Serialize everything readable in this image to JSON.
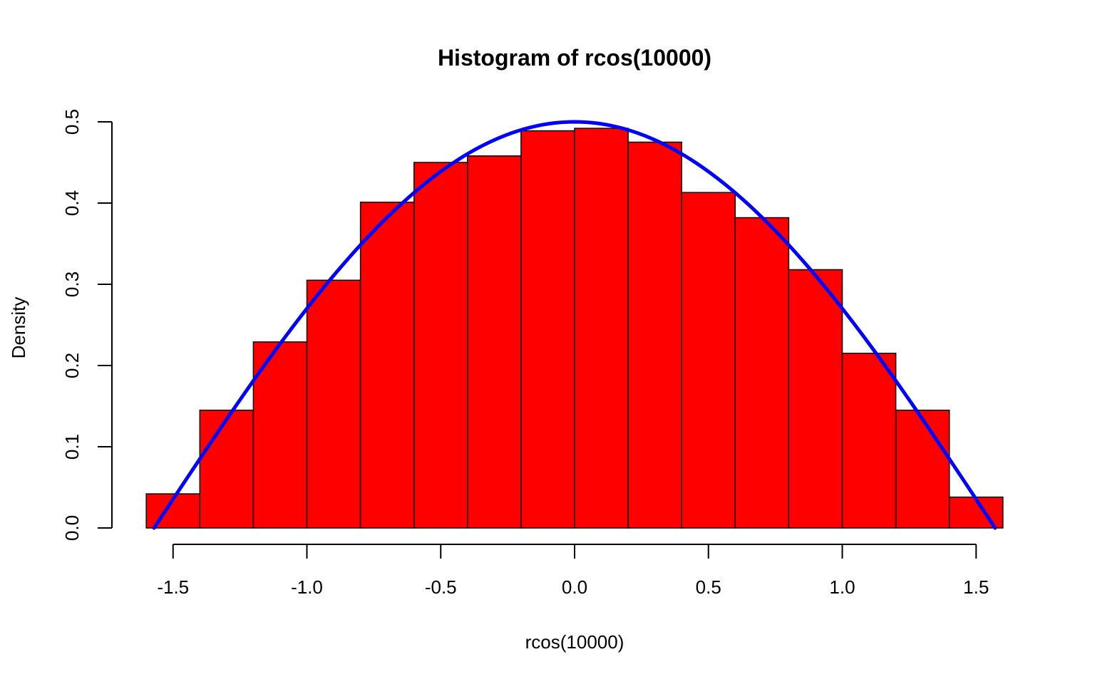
{
  "chart_data": {
    "type": "bar",
    "title": "Histogram of rcos(10000)",
    "xlabel": "rcos(10000)",
    "ylabel": "Density",
    "xlim": [
      -1.6,
      1.6
    ],
    "ylim": [
      0,
      0.5
    ],
    "x_ticks": [
      -1.5,
      -1.0,
      -0.5,
      0.0,
      0.5,
      1.0,
      1.5
    ],
    "x_tick_labels": [
      "-1.5",
      "-1.0",
      "-0.5",
      "0.0",
      "0.5",
      "1.0",
      "1.5"
    ],
    "y_ticks": [
      0.0,
      0.1,
      0.2,
      0.3,
      0.4,
      0.5
    ],
    "y_tick_labels": [
      "0.0",
      "0.1",
      "0.2",
      "0.3",
      "0.4",
      "0.5"
    ],
    "bin_edges": [
      -1.6,
      -1.4,
      -1.2,
      -1.0,
      -0.8,
      -0.6,
      -0.4,
      -0.2,
      0.0,
      0.2,
      0.4,
      0.6,
      0.8,
      1.0,
      1.2,
      1.4,
      1.6
    ],
    "values": [
      0.042,
      0.145,
      0.229,
      0.305,
      0.401,
      0.45,
      0.458,
      0.489,
      0.492,
      0.475,
      0.413,
      0.382,
      0.318,
      0.215,
      0.145,
      0.038
    ],
    "curve": {
      "function": "0.5*cos(x)",
      "x_range": [
        -1.5708,
        1.5708
      ]
    },
    "colors": {
      "bar_fill": "#ff0000",
      "bar_stroke": "#000000",
      "curve": "#0000ff"
    },
    "grid": false,
    "legend": "none"
  }
}
